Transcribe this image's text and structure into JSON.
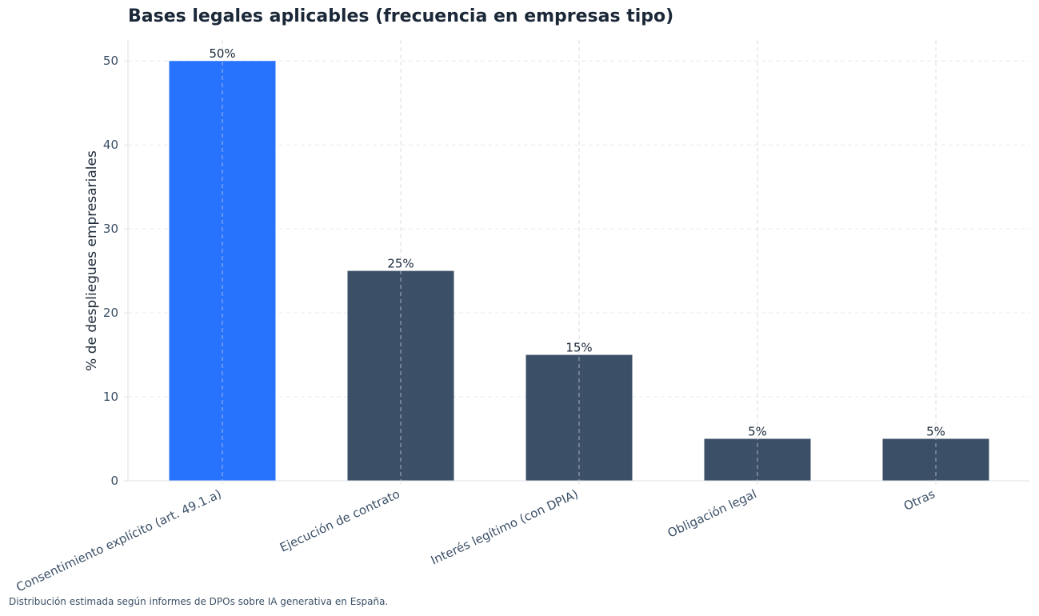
{
  "title": "Bases legales aplicables (frecuencia en empresas tipo)",
  "footnote": "Distribución estimada según informes de DPOs sobre IA generativa en España.",
  "colors": {
    "highlight": "#2873fd",
    "default": "#3b4f66",
    "grid": "#e6e9ee",
    "axis": "#dde2e8"
  },
  "chart_data": {
    "type": "bar",
    "categories": [
      "Consentimiento explícito (art. 49.1.a)",
      "Ejecución de contrato",
      "Interés legítimo (con DPIA)",
      "Obligación legal",
      "Otras"
    ],
    "values": [
      50,
      25,
      15,
      5,
      5
    ],
    "data_labels": [
      "50%",
      "25%",
      "15%",
      "5%",
      "5%"
    ],
    "highlighted_index": 0,
    "ylabel": "% de despliegues empresariales",
    "xlabel": "",
    "ylim": [
      0,
      52.5
    ],
    "yticks": [
      0,
      10,
      20,
      30,
      40,
      50
    ],
    "grid": true,
    "legend": "none"
  }
}
